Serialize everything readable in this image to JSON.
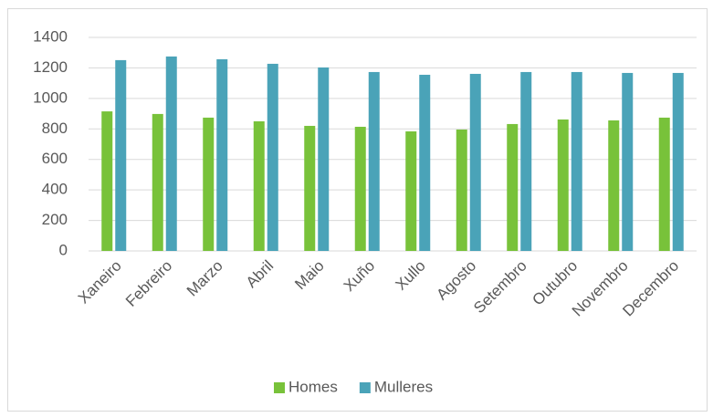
{
  "chart_data": {
    "type": "bar",
    "categories": [
      "Xaneiro",
      "Febreiro",
      "Marzo",
      "Abril",
      "Maio",
      "Xuño",
      "Xullo",
      "Agosto",
      "Setembro",
      "Outubro",
      "Novembro",
      "Decembro"
    ],
    "series": [
      {
        "name": "Homes",
        "color": "#78c23a",
        "values": [
          915,
          898,
          874,
          850,
          820,
          814,
          784,
          796,
          832,
          862,
          856,
          874
        ]
      },
      {
        "name": "Mulleres",
        "color": "#4aa3b8",
        "values": [
          1251,
          1275,
          1257,
          1227,
          1203,
          1173,
          1155,
          1161,
          1173,
          1173,
          1167,
          1167
        ]
      }
    ],
    "ylim": [
      0,
      1400
    ],
    "yticks": [
      0,
      200,
      400,
      600,
      800,
      1000,
      1200,
      1400
    ],
    "grid": true,
    "legend": "bottom"
  }
}
